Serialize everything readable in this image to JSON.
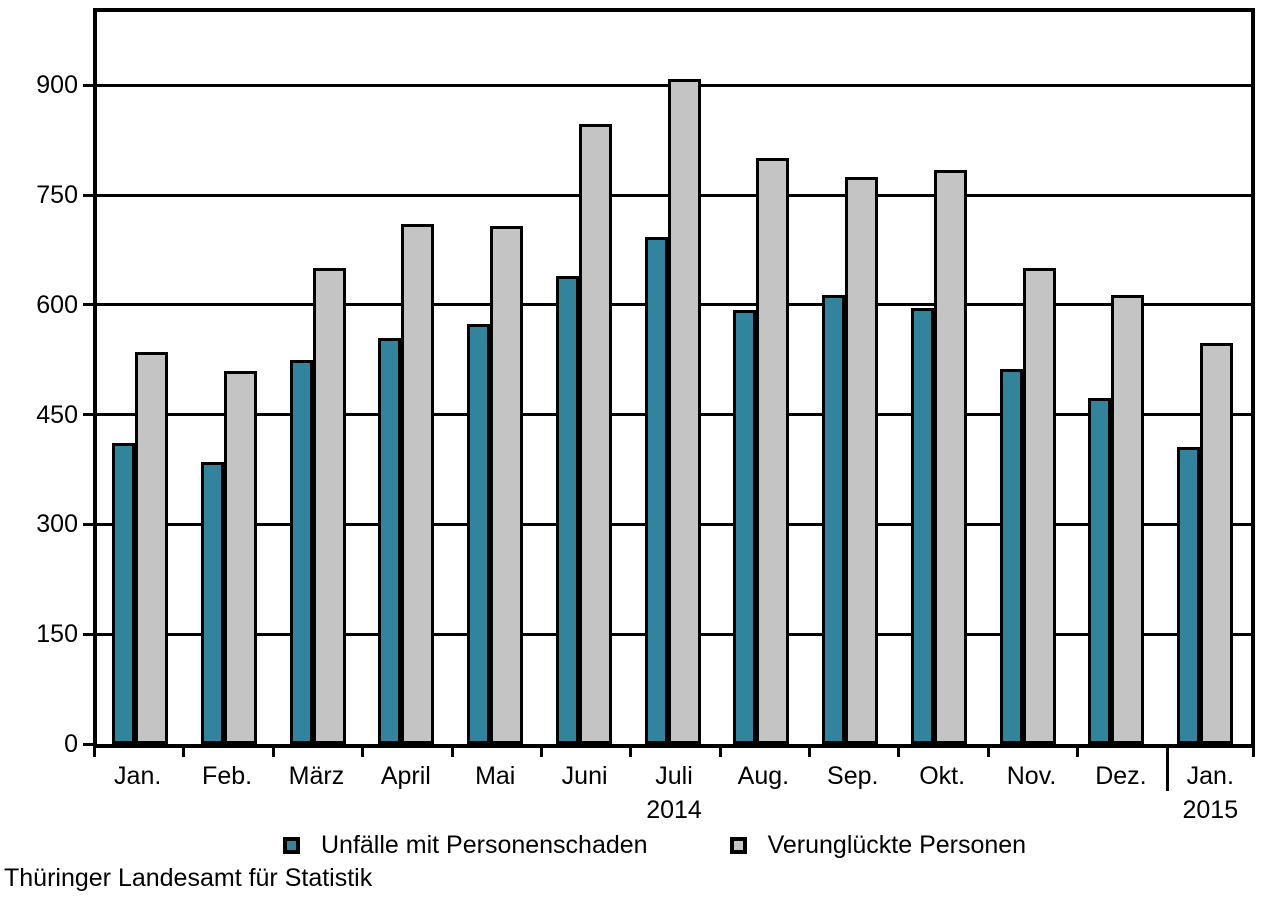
{
  "chart_data": {
    "type": "bar",
    "title": "",
    "categories": [
      "Jan.",
      "Feb.",
      "März",
      "April",
      "Mai",
      "Juni",
      "Juli",
      "Aug.",
      "Sep.",
      "Okt.",
      "Nov.",
      "Dez.",
      "Jan."
    ],
    "year_labels": [
      {
        "index": 6,
        "label": "2014"
      },
      {
        "index": 12,
        "label": "2015"
      }
    ],
    "series": [
      {
        "name": "Unfälle mit Personenschaden",
        "color": "#32839c",
        "values": [
          411,
          385,
          524,
          554,
          574,
          639,
          692,
          593,
          614,
          596,
          512,
          473,
          406
        ]
      },
      {
        "name": "Verunglückte Personen",
        "color": "#c4c4c4",
        "values": [
          536,
          509,
          650,
          710,
          707,
          847,
          908,
          800,
          774,
          784,
          650,
          613,
          548
        ]
      }
    ],
    "ylim": [
      0,
      1000
    ],
    "yticks": [
      0,
      150,
      300,
      450,
      600,
      750,
      900
    ],
    "grid": "horizontal",
    "legend_position": "bottom",
    "year_separator_boundary_index": 12,
    "source": "Thüringer Landesamt für Statistik",
    "colors": {
      "frame": "#000000",
      "background": "#ffffff"
    }
  }
}
